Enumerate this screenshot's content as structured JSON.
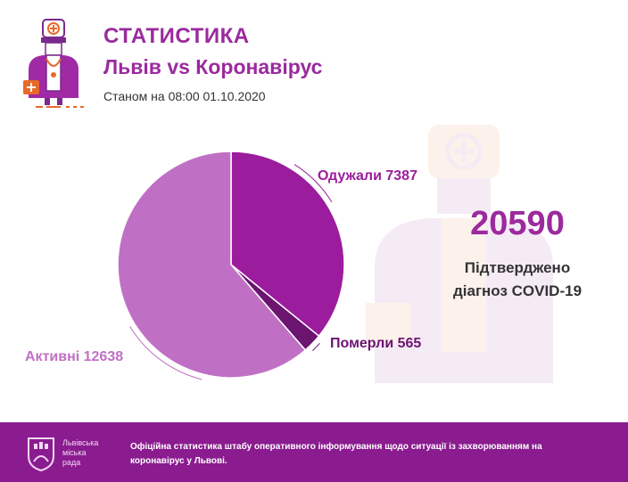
{
  "header": {
    "title": "СТАТИСТИКА",
    "subtitle": "Львів vs Коронавірус",
    "as_of": "Станом на 08:00 01.10.2020"
  },
  "summary": {
    "total": "20590",
    "caption_line1": "Підтверджено",
    "caption_line2": "діагноз COVID-19"
  },
  "chart_data": {
    "type": "pie",
    "title": "",
    "slices": [
      {
        "name": "Одужали",
        "value": 7387,
        "color": "#9b1c9d"
      },
      {
        "name": "Померли",
        "value": 565,
        "color": "#6b1470"
      },
      {
        "name": "Активні",
        "value": 12638,
        "color": "#c070c4"
      }
    ],
    "labels": [
      {
        "text": "Одужали 7387",
        "color": "#9b1c9d"
      },
      {
        "text": "Померли 565",
        "color": "#6b1470"
      },
      {
        "text": "Активні 12638",
        "color": "#c070c4"
      }
    ]
  },
  "footer": {
    "brand_line1": "Львівська",
    "brand_line2": "міська",
    "brand_line3": "рада",
    "text": "Офіційна статистика штабу оперативного інформування щодо ситуації із захворюванням на коронавірус у Львові."
  },
  "icons": {
    "logo": "doctor-icon",
    "footer_logo": "city-coat-of-arms-icon",
    "watermark": "doctor-watermark-icon"
  }
}
